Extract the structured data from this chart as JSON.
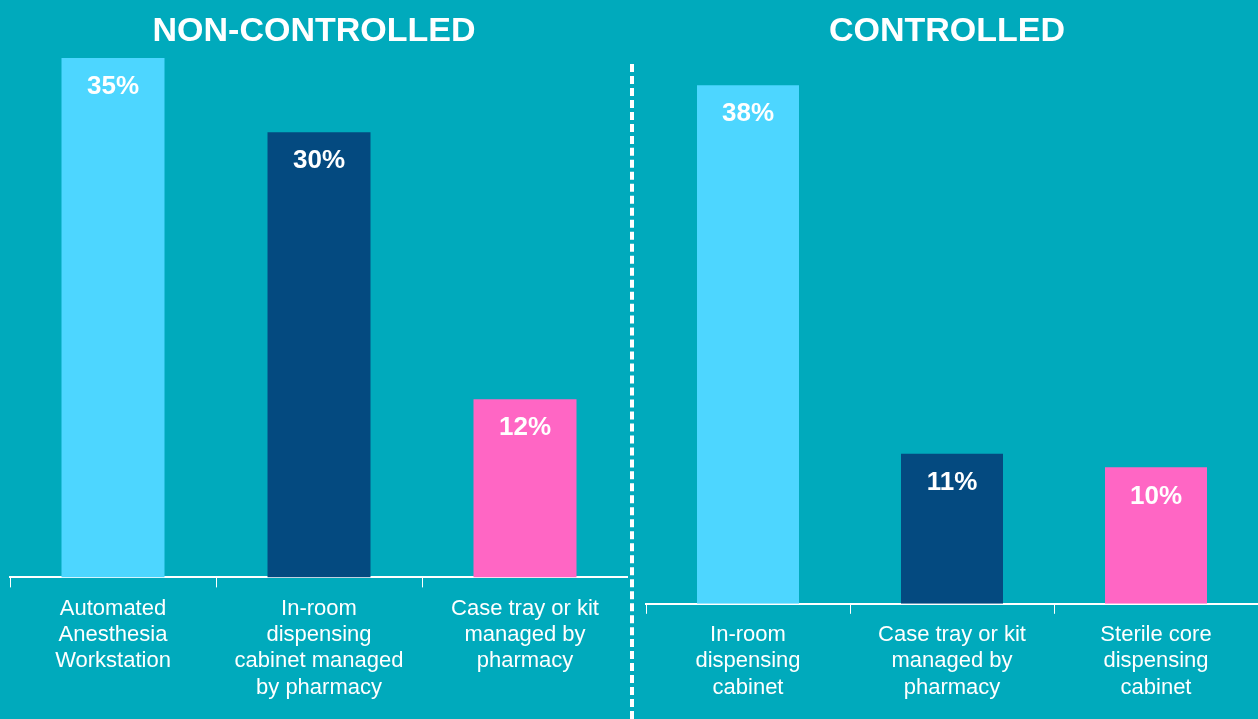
{
  "chart_data": [
    {
      "type": "bar",
      "title": "NON-CONTROLLED",
      "categories": [
        "Automated Anesthesia Workstation",
        "In-room dispensing cabinet managed by pharmacy",
        "Case tray or kit managed by pharmacy"
      ],
      "values": [
        35,
        30,
        12
      ],
      "colors": [
        "#4dd6ff",
        "#044a80",
        "#ff66c4"
      ],
      "value_labels": [
        "35%",
        "30%",
        "12%"
      ]
    },
    {
      "type": "bar",
      "title": "CONTROLLED",
      "categories": [
        "In-room dispensing cabinet",
        "Case tray or kit managed by pharmacy",
        "Sterile core dispensing cabinet"
      ],
      "values": [
        38,
        11,
        10
      ],
      "colors": [
        "#4dd6ff",
        "#044a80",
        "#ff66c4"
      ],
      "value_labels": [
        "38%",
        "11%",
        "10%"
      ]
    }
  ]
}
